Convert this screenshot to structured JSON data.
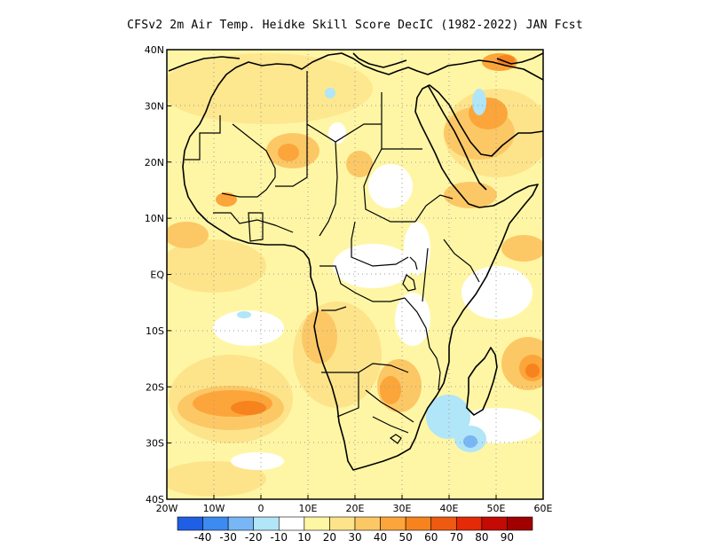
{
  "title": "CFSv2  2m Air Temp. Heidke Skill Score DecIC (1982-2022) JAN Fcst",
  "lat_ticks": [
    "40N",
    "30N",
    "20N",
    "10N",
    "EQ",
    "10S",
    "20S",
    "30S",
    "40S"
  ],
  "lon_ticks": [
    "20W",
    "10W",
    "0",
    "10E",
    "20E",
    "30E",
    "40E",
    "50E",
    "60E"
  ],
  "colorbar": {
    "colors": [
      "#1f5fe6",
      "#3b8bf0",
      "#78b6f5",
      "#b1e5f8",
      "#ffffff",
      "#fff6a5",
      "#fde48a",
      "#fcc865",
      "#fca53a",
      "#f6831e",
      "#ee5a11",
      "#e42a07",
      "#c40a04",
      "#a10000"
    ],
    "labels": [
      "-40",
      "-30",
      "-20",
      "-10",
      "10",
      "20",
      "30",
      "40",
      "50",
      "60",
      "70",
      "80",
      "90"
    ]
  }
}
